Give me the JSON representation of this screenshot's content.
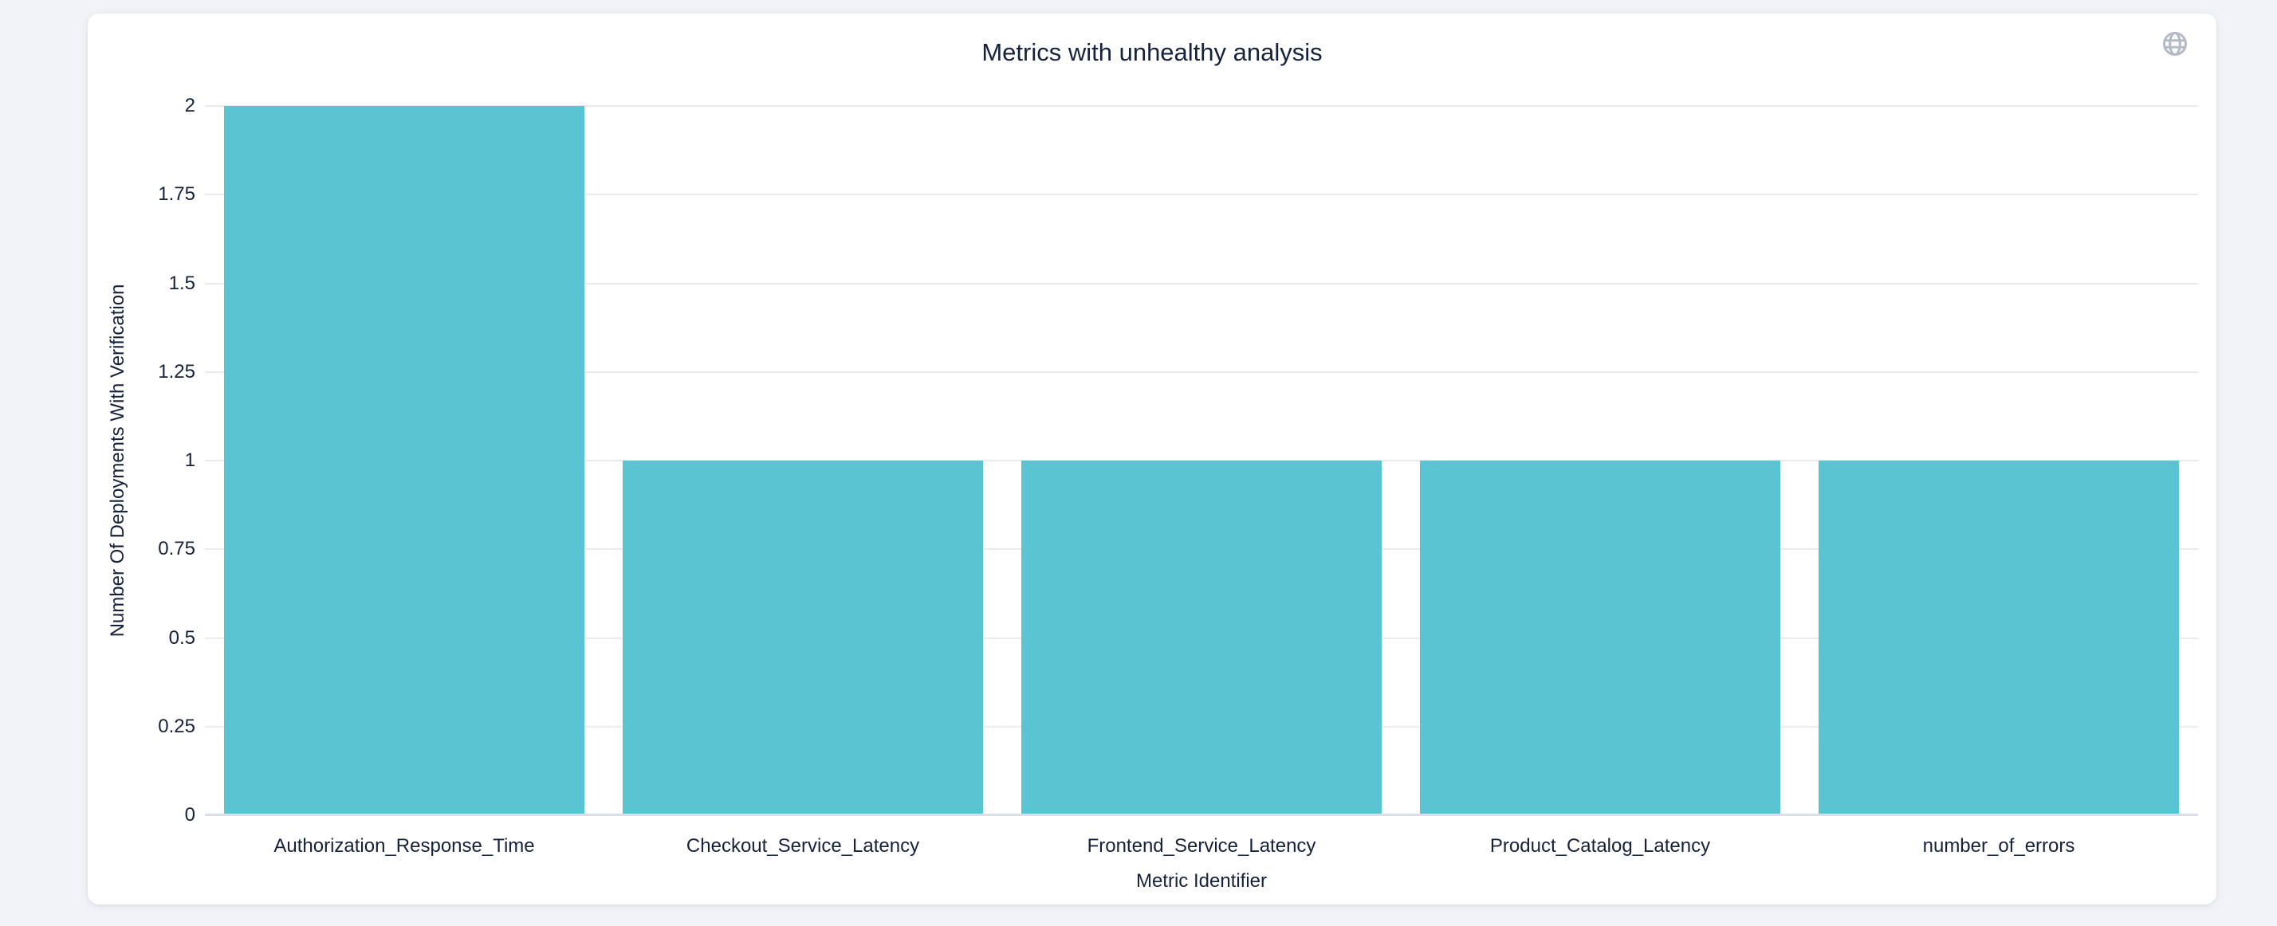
{
  "header": {
    "title": "Metrics with unhealthy analysis"
  },
  "colors": {
    "page_background": "#f1f3f7",
    "card_background": "#ffffff",
    "bar": "#5ac4d2",
    "text": "#16213a",
    "gridline": "#ebebee",
    "axis_line": "#d9dee9",
    "globe_icon": "#b4bbc7"
  },
  "chart_data": {
    "type": "bar",
    "title": "Metrics with unhealthy analysis",
    "categories": [
      "Authorization_Response_Time",
      "Checkout_Service_Latency",
      "Frontend_Service_Latency",
      "Product_Catalog_Latency",
      "number_of_errors"
    ],
    "values": [
      2,
      1,
      1,
      1,
      1
    ],
    "xlabel": "Metric Identifier",
    "ylabel": "Number Of Deployments With Verification",
    "ylim": [
      0,
      2
    ],
    "yticks": [
      0,
      0.25,
      0.5,
      0.75,
      1,
      1.25,
      1.5,
      1.75,
      2
    ],
    "ytick_labels": [
      "0",
      "0.25",
      "0.5",
      "0.75",
      "1",
      "1.25",
      "1.5",
      "1.75",
      "2"
    ],
    "grid": true,
    "legend": false,
    "bar_color": "#5ac4d2"
  }
}
